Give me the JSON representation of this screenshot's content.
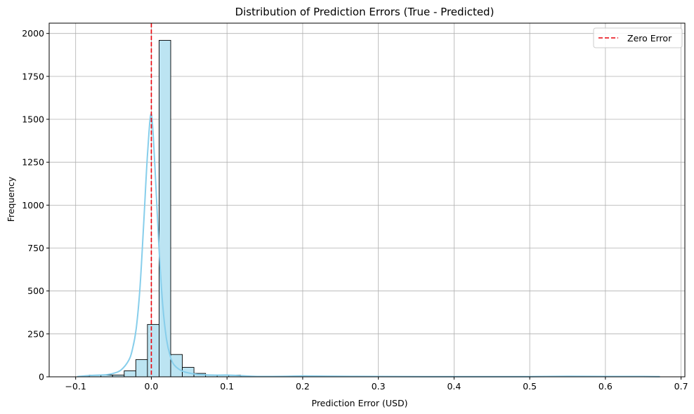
{
  "chart_data": {
    "type": "histogram",
    "title": "Distribution of Prediction Errors (True - Predicted)",
    "xlabel": "Prediction Error (USD)",
    "ylabel": "Frequency",
    "xlim": [
      -0.135,
      0.705
    ],
    "ylim": [
      0,
      2060
    ],
    "xticks": [
      -0.1,
      0.0,
      0.1,
      0.2,
      0.3,
      0.4,
      0.5,
      0.6,
      0.7
    ],
    "xtick_labels": [
      "−0.1",
      "0.0",
      "0.1",
      "0.2",
      "0.3",
      "0.4",
      "0.5",
      "0.6",
      "0.7"
    ],
    "yticks": [
      0,
      250,
      500,
      750,
      1000,
      1250,
      1500,
      1750,
      2000
    ],
    "ytick_labels": [
      "0",
      "250",
      "500",
      "750",
      "1000",
      "1250",
      "1500",
      "1750",
      "2000"
    ],
    "grid": true,
    "legend": {
      "placement": "top-right",
      "entries": [
        {
          "label": "Zero Error",
          "style": "dashed",
          "color": "#e8000b"
        }
      ]
    },
    "bins": {
      "start": -0.0973,
      "width": 0.01536,
      "counts": [
        1,
        10,
        10,
        10,
        35,
        100,
        305,
        1960,
        130,
        55,
        20,
        10,
        10,
        10,
        3,
        2,
        1,
        1,
        1,
        4,
        1,
        1,
        1,
        1,
        2,
        2,
        1,
        1,
        1,
        1,
        1,
        1,
        1,
        1,
        1,
        1,
        1,
        1,
        1,
        1,
        1,
        1,
        1,
        2,
        1,
        1,
        1,
        1,
        1,
        1
      ]
    },
    "kde": {
      "x": [
        -0.098,
        -0.08,
        -0.06,
        -0.05,
        -0.04,
        -0.03,
        -0.025,
        -0.02,
        -0.015,
        -0.01,
        -0.005,
        0.0,
        0.005,
        0.01,
        0.015,
        0.02,
        0.025,
        0.03,
        0.04,
        0.05,
        0.06,
        0.08,
        0.1,
        0.12,
        0.14,
        0.18,
        0.2,
        0.25,
        0.3,
        0.4,
        0.5,
        0.55,
        0.6,
        0.65,
        0.672
      ],
      "y": [
        1,
        8,
        12,
        20,
        40,
        95,
        160,
        280,
        520,
        900,
        1300,
        1530,
        1200,
        760,
        420,
        220,
        120,
        70,
        35,
        22,
        15,
        10,
        10,
        6,
        2,
        3,
        5,
        3,
        2,
        1,
        1,
        3,
        2,
        2,
        1
      ]
    },
    "vline": {
      "x": 0.0,
      "label": "Zero Error",
      "color": "#e8000b"
    },
    "colors": {
      "bar_fill": "#bce4f2",
      "bar_edge": "#000000",
      "kde": "#87ceeb",
      "grid": "#b0b0b0"
    }
  }
}
